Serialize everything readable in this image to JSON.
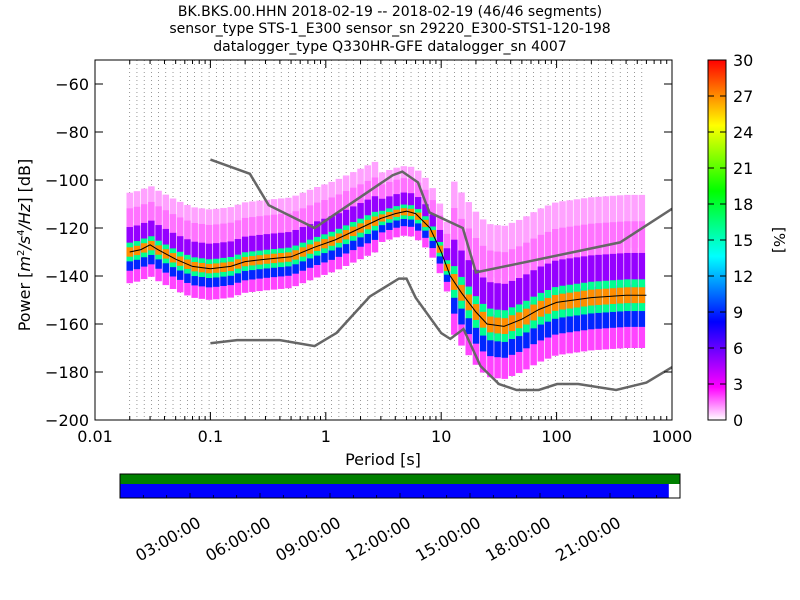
{
  "title_lines": [
    "BK.BKS.00.HHN   2018-02-19 -- 2018-02-19  (46/46 segments)",
    "sensor_type STS-1_E300 sensor_sn 29220_E300-STS1-120-198",
    "datalogger_type Q330HR-GFE datalogger_sn 4007"
  ],
  "chart_data": {
    "type": "heatmap",
    "xlabel": "Period [s]",
    "ylabel_parts": [
      "Power [",
      "m",
      "2",
      "/s",
      "4",
      "/Hz",
      "] [dB]"
    ],
    "xscale": "log",
    "xlim": [
      0.01,
      1000
    ],
    "ylim": [
      -200,
      -50
    ],
    "x_ticks": [
      {
        "value": 0.01,
        "label": "0.01"
      },
      {
        "value": 0.1,
        "label": "0.1"
      },
      {
        "value": 1,
        "label": "1"
      },
      {
        "value": 10,
        "label": "10"
      },
      {
        "value": 100,
        "label": "100"
      },
      {
        "value": 1000,
        "label": "1000"
      }
    ],
    "y_ticks": [
      {
        "value": -60,
        "label": "−60"
      },
      {
        "value": -80,
        "label": "−80"
      },
      {
        "value": -100,
        "label": "−100"
      },
      {
        "value": -120,
        "label": "−120"
      },
      {
        "value": -140,
        "label": "−140"
      },
      {
        "value": -160,
        "label": "−160"
      },
      {
        "value": -180,
        "label": "−180"
      },
      {
        "value": -200,
        "label": "−200"
      }
    ],
    "grid": "dotted vertical lines at each period bin",
    "colorbar": {
      "label": "[%]",
      "range": [
        0,
        30
      ],
      "ticks": [
        {
          "value": 0,
          "label": "0"
        },
        {
          "value": 3,
          "label": "3"
        },
        {
          "value": 6,
          "label": "6"
        },
        {
          "value": 9,
          "label": "9"
        },
        {
          "value": 12,
          "label": "12"
        },
        {
          "value": 15,
          "label": "15"
        },
        {
          "value": 18,
          "label": "18"
        },
        {
          "value": 21,
          "label": "21"
        },
        {
          "value": 24,
          "label": "24"
        },
        {
          "value": 27,
          "label": "27"
        },
        {
          "value": 30,
          "label": "30"
        }
      ],
      "colormap": [
        "#ffffff",
        "#ff00ff",
        "#8000ff",
        "#0000ff",
        "#0080ff",
        "#00ffff",
        "#00ff80",
        "#00ff00",
        "#80ff00",
        "#ffff00",
        "#ff8000",
        "#ff0000"
      ]
    },
    "noise_models": [
      {
        "name": "NHNM",
        "color": "#666666",
        "points": [
          [
            0.1,
            -91.5
          ],
          [
            0.22,
            -97.4
          ],
          [
            0.32,
            -110.5
          ],
          [
            0.8,
            -120
          ],
          [
            3.8,
            -98
          ],
          [
            4.6,
            -96.5
          ],
          [
            6.3,
            -101
          ],
          [
            7.9,
            -113.5
          ],
          [
            15.4,
            -120
          ],
          [
            20,
            -138.5
          ],
          [
            354.8,
            -126
          ],
          [
            1000,
            -112
          ]
        ]
      },
      {
        "name": "NLNM",
        "color": "#666666",
        "points": [
          [
            0.1,
            -168
          ],
          [
            0.17,
            -166.7
          ],
          [
            0.4,
            -166.7
          ],
          [
            0.8,
            -169.2
          ],
          [
            1.24,
            -163.7
          ],
          [
            2.4,
            -148.6
          ],
          [
            4.3,
            -141.1
          ],
          [
            5,
            -141.1
          ],
          [
            6,
            -149
          ],
          [
            10,
            -163.8
          ],
          [
            12,
            -166.2
          ],
          [
            15.6,
            -162.1
          ],
          [
            21.9,
            -177.5
          ],
          [
            31.6,
            -185
          ],
          [
            45,
            -187.5
          ],
          [
            70,
            -187.5
          ],
          [
            101,
            -185
          ],
          [
            154,
            -185
          ],
          [
            328,
            -187.5
          ],
          [
            600,
            -184.4
          ],
          [
            1000,
            -178
          ]
        ]
      }
    ],
    "mode_curve": [
      [
        0.02,
        -130
      ],
      [
        0.025,
        -129
      ],
      [
        0.03,
        -127
      ],
      [
        0.035,
        -129
      ],
      [
        0.05,
        -133
      ],
      [
        0.07,
        -136
      ],
      [
        0.1,
        -137
      ],
      [
        0.15,
        -136
      ],
      [
        0.2,
        -134
      ],
      [
        0.3,
        -133
      ],
      [
        0.5,
        -132
      ],
      [
        0.8,
        -128
      ],
      [
        1.2,
        -125
      ],
      [
        2,
        -120
      ],
      [
        3,
        -116
      ],
      [
        4,
        -114
      ],
      [
        5,
        -113
      ],
      [
        6,
        -114
      ],
      [
        8,
        -120
      ],
      [
        10,
        -130
      ],
      [
        12,
        -140
      ],
      [
        15,
        -147
      ],
      [
        20,
        -155
      ],
      [
        25,
        -160
      ],
      [
        35,
        -161
      ],
      [
        50,
        -158
      ],
      [
        70,
        -154
      ],
      [
        100,
        -151
      ],
      [
        200,
        -149
      ],
      [
        400,
        -148
      ],
      [
        600,
        -148
      ]
    ],
    "density_bands": [
      {
        "percent": 27,
        "offset": 0,
        "width": 1.5
      },
      {
        "percent": 16,
        "offset": 0,
        "width": 3
      },
      {
        "percent": 9,
        "offset": -2,
        "width": 4
      },
      {
        "percent": 5,
        "offset": 3,
        "width": 5
      },
      {
        "percent": 2,
        "offset": -6,
        "width": 4
      },
      {
        "percent": 1.5,
        "offset": 8,
        "width": 6
      },
      {
        "percent": 1,
        "offset": 14,
        "width": 5
      }
    ]
  },
  "timeline": {
    "labels": [
      "03:00:00",
      "06:00:00",
      "09:00:00",
      "12:00:00",
      "15:00:00",
      "18:00:00",
      "21:00:00"
    ],
    "data_fraction": 0.98,
    "colors": {
      "top": "#008000",
      "bottom": "#0000ff"
    }
  }
}
